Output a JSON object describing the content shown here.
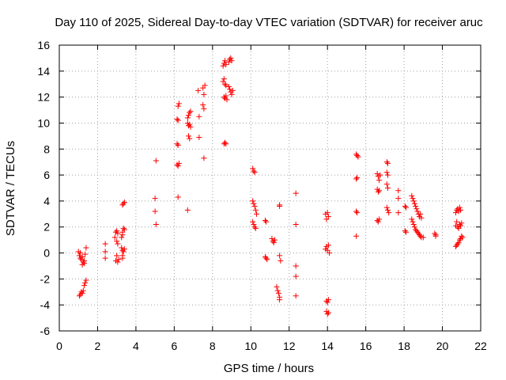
{
  "chart_data": {
    "type": "scatter",
    "title": "Day 110 of 2025, Sidereal Day-to-day VTEC variation (SDTVAR) for receiver aruc",
    "xlabel": "GPS time / hours",
    "ylabel": "SDTVAR / TECUs",
    "xlim": [
      0,
      22
    ],
    "ylim": [
      -6,
      16
    ],
    "x_ticks": [
      0,
      2,
      4,
      6,
      8,
      10,
      12,
      14,
      16,
      18,
      20,
      22
    ],
    "y_ticks": [
      -6,
      -4,
      -2,
      0,
      2,
      4,
      6,
      8,
      10,
      12,
      14,
      16
    ],
    "grid": true,
    "marker": "+",
    "marker_color": "#ff0000",
    "series": [
      {
        "name": "SDTVAR",
        "points": [
          [
            1.0,
            0.1
          ],
          [
            1.05,
            -0.2
          ],
          [
            1.1,
            0.0
          ],
          [
            1.15,
            -0.5
          ],
          [
            1.2,
            -0.3
          ],
          [
            1.25,
            -0.7
          ],
          [
            1.3,
            -0.6
          ],
          [
            1.35,
            -0.1
          ],
          [
            1.4,
            0.4
          ],
          [
            1.1,
            -0.4
          ],
          [
            1.2,
            -0.9
          ],
          [
            1.3,
            -0.8
          ],
          [
            1.05,
            -3.3
          ],
          [
            1.1,
            -3.2
          ],
          [
            1.15,
            -3.0
          ],
          [
            1.2,
            -3.1
          ],
          [
            1.25,
            -2.9
          ],
          [
            1.3,
            -2.5
          ],
          [
            1.35,
            -2.3
          ],
          [
            1.4,
            -2.1
          ],
          [
            2.4,
            0.7
          ],
          [
            2.4,
            0.1
          ],
          [
            2.4,
            -0.4
          ],
          [
            2.9,
            1.2
          ],
          [
            2.95,
            1.6
          ],
          [
            3.0,
            1.7
          ],
          [
            3.05,
            1.5
          ],
          [
            3.0,
            0.9
          ],
          [
            3.05,
            0.7
          ],
          [
            3.0,
            -0.2
          ],
          [
            2.95,
            -0.6
          ],
          [
            3.05,
            -0.7
          ],
          [
            3.1,
            -0.5
          ],
          [
            3.25,
            1.2
          ],
          [
            3.3,
            1.6
          ],
          [
            3.35,
            1.9
          ],
          [
            3.3,
            1.4
          ],
          [
            3.4,
            1.8
          ],
          [
            3.25,
            0.4
          ],
          [
            3.3,
            0.2
          ],
          [
            3.35,
            0.1
          ],
          [
            3.4,
            0.3
          ],
          [
            3.3,
            -0.2
          ],
          [
            3.3,
            -0.4
          ],
          [
            3.3,
            3.7
          ],
          [
            3.35,
            3.8
          ],
          [
            3.4,
            3.9
          ],
          [
            5.05,
            7.1
          ],
          [
            5.0,
            4.2
          ],
          [
            5.0,
            3.2
          ],
          [
            5.05,
            2.2
          ],
          [
            6.15,
            10.3
          ],
          [
            6.2,
            11.3
          ],
          [
            6.25,
            11.5
          ],
          [
            6.2,
            10.2
          ],
          [
            6.15,
            8.4
          ],
          [
            6.2,
            8.3
          ],
          [
            6.15,
            6.8
          ],
          [
            6.2,
            6.7
          ],
          [
            6.25,
            6.9
          ],
          [
            6.2,
            4.3
          ],
          [
            6.7,
            10.4
          ],
          [
            6.75,
            10.6
          ],
          [
            6.8,
            10.8
          ],
          [
            6.85,
            10.9
          ],
          [
            6.7,
            10.0
          ],
          [
            6.75,
            9.8
          ],
          [
            6.8,
            9.9
          ],
          [
            6.85,
            9.7
          ],
          [
            6.75,
            9.0
          ],
          [
            6.8,
            8.8
          ],
          [
            6.7,
            3.3
          ],
          [
            7.25,
            12.5
          ],
          [
            7.3,
            10.5
          ],
          [
            7.3,
            8.9
          ],
          [
            7.5,
            12.7
          ],
          [
            7.55,
            12.2
          ],
          [
            7.6,
            12.9
          ],
          [
            7.5,
            11.4
          ],
          [
            7.55,
            11.1
          ],
          [
            7.55,
            7.3
          ],
          [
            8.55,
            13.2
          ],
          [
            8.6,
            13.4
          ],
          [
            8.65,
            13.0
          ],
          [
            8.7,
            12.9
          ],
          [
            8.55,
            14.4
          ],
          [
            8.6,
            14.6
          ],
          [
            8.65,
            14.8
          ],
          [
            8.7,
            14.5
          ],
          [
            8.6,
            12.0
          ],
          [
            8.65,
            11.9
          ],
          [
            8.7,
            12.1
          ],
          [
            8.75,
            11.8
          ],
          [
            8.6,
            8.4
          ],
          [
            8.65,
            8.5
          ],
          [
            8.7,
            8.4
          ],
          [
            8.85,
            14.7
          ],
          [
            8.9,
            14.9
          ],
          [
            8.95,
            15.0
          ],
          [
            9.0,
            14.8
          ],
          [
            8.85,
            12.8
          ],
          [
            8.9,
            12.6
          ],
          [
            8.95,
            12.4
          ],
          [
            9.0,
            12.2
          ],
          [
            9.05,
            12.5
          ],
          [
            10.1,
            6.5
          ],
          [
            10.15,
            6.3
          ],
          [
            10.2,
            6.2
          ],
          [
            10.1,
            4.0
          ],
          [
            10.15,
            3.8
          ],
          [
            10.2,
            3.6
          ],
          [
            10.25,
            3.3
          ],
          [
            10.3,
            3.0
          ],
          [
            10.1,
            2.4
          ],
          [
            10.15,
            2.2
          ],
          [
            10.2,
            2.0
          ],
          [
            10.25,
            1.9
          ],
          [
            10.75,
            2.5
          ],
          [
            10.8,
            2.4
          ],
          [
            10.75,
            -0.3
          ],
          [
            10.8,
            -0.4
          ],
          [
            10.85,
            -0.5
          ],
          [
            11.1,
            1.1
          ],
          [
            11.15,
            0.9
          ],
          [
            11.2,
            0.8
          ],
          [
            11.25,
            1.0
          ],
          [
            11.35,
            -2.6
          ],
          [
            11.4,
            -2.9
          ],
          [
            11.45,
            -3.1
          ],
          [
            11.5,
            -3.4
          ],
          [
            11.5,
            -3.6
          ],
          [
            11.5,
            3.7
          ],
          [
            11.5,
            3.6
          ],
          [
            11.5,
            -0.2
          ],
          [
            11.55,
            -0.6
          ],
          [
            12.35,
            4.6
          ],
          [
            12.35,
            2.2
          ],
          [
            12.35,
            -1.0
          ],
          [
            12.35,
            -1.8
          ],
          [
            12.35,
            -3.3
          ],
          [
            13.9,
            3.0
          ],
          [
            13.95,
            2.6
          ],
          [
            14.0,
            3.1
          ],
          [
            14.05,
            2.8
          ],
          [
            13.9,
            0.3
          ],
          [
            13.95,
            0.5
          ],
          [
            14.0,
            0.2
          ],
          [
            14.05,
            0.6
          ],
          [
            14.1,
            0.0
          ],
          [
            13.95,
            -3.7
          ],
          [
            14.0,
            -3.8
          ],
          [
            14.05,
            -3.6
          ],
          [
            13.95,
            -4.5
          ],
          [
            14.0,
            -4.7
          ],
          [
            14.05,
            -4.6
          ],
          [
            15.5,
            7.6
          ],
          [
            15.55,
            7.5
          ],
          [
            15.6,
            7.4
          ],
          [
            15.5,
            5.7
          ],
          [
            15.55,
            5.8
          ],
          [
            15.5,
            3.2
          ],
          [
            15.55,
            3.1
          ],
          [
            15.5,
            1.3
          ],
          [
            16.6,
            6.1
          ],
          [
            16.65,
            5.9
          ],
          [
            16.7,
            5.6
          ],
          [
            16.75,
            6.0
          ],
          [
            16.6,
            4.9
          ],
          [
            16.65,
            4.7
          ],
          [
            16.7,
            4.8
          ],
          [
            16.6,
            2.5
          ],
          [
            16.65,
            2.4
          ],
          [
            16.7,
            2.6
          ],
          [
            17.1,
            7.0
          ],
          [
            17.15,
            6.9
          ],
          [
            17.1,
            6.2
          ],
          [
            17.15,
            6.0
          ],
          [
            17.1,
            5.3
          ],
          [
            17.15,
            5.0
          ],
          [
            17.1,
            3.5
          ],
          [
            17.15,
            3.3
          ],
          [
            17.2,
            3.1
          ],
          [
            17.7,
            4.8
          ],
          [
            17.7,
            4.2
          ],
          [
            17.7,
            3.1
          ],
          [
            18.05,
            3.6
          ],
          [
            18.1,
            3.5
          ],
          [
            18.05,
            1.7
          ],
          [
            18.1,
            1.6
          ],
          [
            18.4,
            4.4
          ],
          [
            18.45,
            4.2
          ],
          [
            18.5,
            4.0
          ],
          [
            18.55,
            3.8
          ],
          [
            18.6,
            3.6
          ],
          [
            18.65,
            3.4
          ],
          [
            18.7,
            3.2
          ],
          [
            18.75,
            3.0
          ],
          [
            18.8,
            2.8
          ],
          [
            18.85,
            3.0
          ],
          [
            18.9,
            2.7
          ],
          [
            18.4,
            2.6
          ],
          [
            18.45,
            2.4
          ],
          [
            18.5,
            2.2
          ],
          [
            18.55,
            2.0
          ],
          [
            18.6,
            1.8
          ],
          [
            18.65,
            1.7
          ],
          [
            18.7,
            1.6
          ],
          [
            18.75,
            1.5
          ],
          [
            18.8,
            1.4
          ],
          [
            18.85,
            1.3
          ],
          [
            18.9,
            1.2
          ],
          [
            19.0,
            1.2
          ],
          [
            19.6,
            1.5
          ],
          [
            19.65,
            1.4
          ],
          [
            19.65,
            1.3
          ],
          [
            20.7,
            3.1
          ],
          [
            20.75,
            3.3
          ],
          [
            20.8,
            3.4
          ],
          [
            20.85,
            3.2
          ],
          [
            20.9,
            3.5
          ],
          [
            20.95,
            3.3
          ],
          [
            20.7,
            2.1
          ],
          [
            20.75,
            2.4
          ],
          [
            20.8,
            2.0
          ],
          [
            20.85,
            1.9
          ],
          [
            20.9,
            2.2
          ],
          [
            20.95,
            2.1
          ],
          [
            21.0,
            2.3
          ],
          [
            20.7,
            0.5
          ],
          [
            20.75,
            0.6
          ],
          [
            20.8,
            0.7
          ],
          [
            20.85,
            0.8
          ],
          [
            20.9,
            1.0
          ],
          [
            20.95,
            1.1
          ],
          [
            21.0,
            1.3
          ],
          [
            21.05,
            1.2
          ]
        ]
      }
    ]
  }
}
